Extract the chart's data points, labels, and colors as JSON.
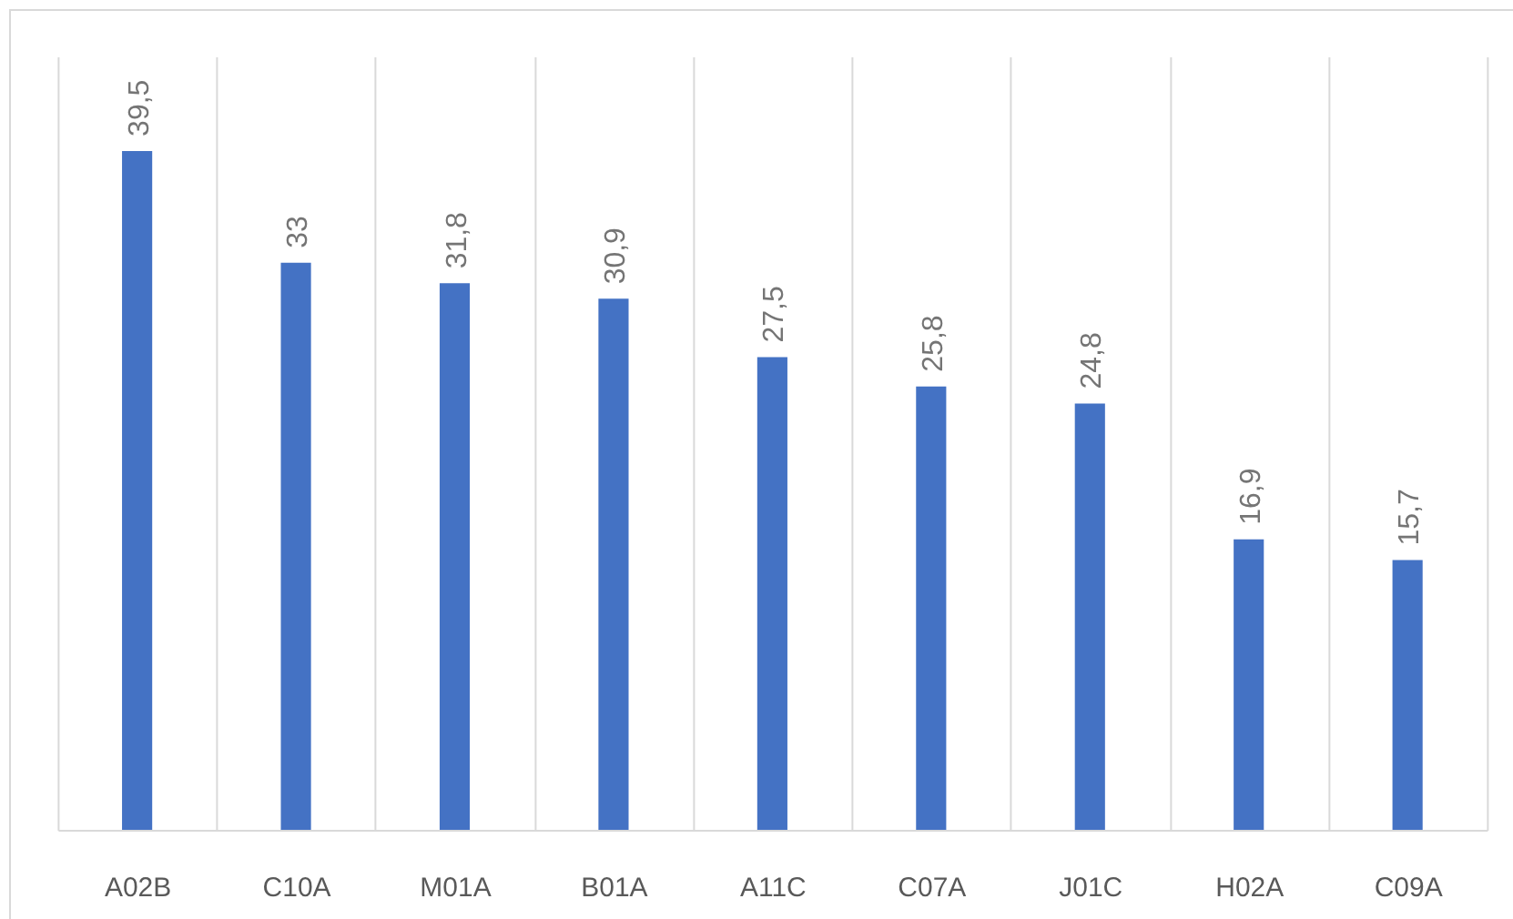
{
  "chart_data": {
    "type": "bar",
    "categories": [
      "A02B",
      "C10A",
      "M01A",
      "B01A",
      "A11C",
      "C07A",
      "J01C",
      "H02A",
      "C09A"
    ],
    "values": [
      39.5,
      33,
      31.8,
      30.9,
      27.5,
      25.8,
      24.8,
      16.9,
      15.7
    ],
    "value_labels": [
      "39,5",
      "33",
      "31,8",
      "30,9",
      "27,5",
      "25,8",
      "24,8",
      "16,9",
      "15,7"
    ],
    "color": "#4472c4",
    "ylim": [
      0,
      45
    ],
    "grid": "x",
    "tick_labels": "x"
  }
}
